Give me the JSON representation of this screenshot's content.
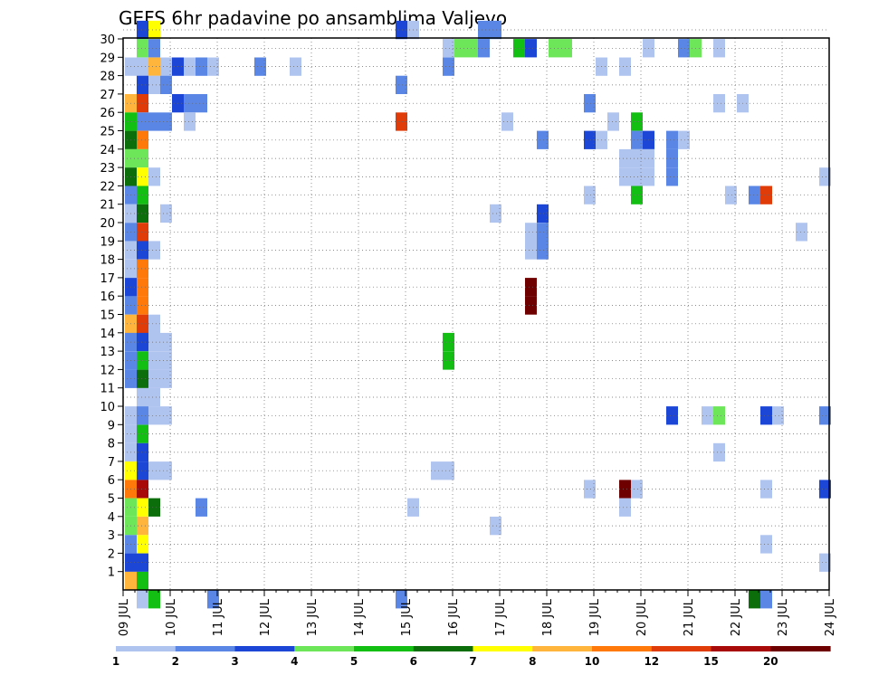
{
  "chart_data": {
    "type": "heatmap",
    "title": "GEFS 6hr padavine po ansamblima Valjevo",
    "xlabel": "",
    "ylabel": "",
    "x_ticks": [
      "09 JUL",
      "10 JUL",
      "11 JUL",
      "12 JUL",
      "13 JUL",
      "14 JUL",
      "15 JUL",
      "16 JUL",
      "17 JUL",
      "18 JUL",
      "19 JUL",
      "20 JUL",
      "21 JUL",
      "22 JUL",
      "23 JUL",
      "24 JUL"
    ],
    "y_ticks": [
      "1",
      "2",
      "3",
      "4",
      "5",
      "6",
      "7",
      "8",
      "9",
      "10",
      "11",
      "12",
      "13",
      "14",
      "15",
      "16",
      "17",
      "18",
      "19",
      "20",
      "21",
      "22",
      "23",
      "24",
      "25",
      "26",
      "27",
      "28",
      "29",
      "30"
    ],
    "x_range_days": [
      0,
      15
    ],
    "y_range_members": [
      0,
      30
    ],
    "time_step_hours": 6,
    "grid": true,
    "legend_placement": "bottom",
    "colorbar": {
      "colors": [
        "#b0c4f0",
        "#5a87e6",
        "#1b46d6",
        "#6ee65a",
        "#12bf12",
        "#0b6e0b",
        "#ffff00",
        "#ffb43c",
        "#ff780a",
        "#e03c0a",
        "#a80a0a",
        "#6e0000"
      ],
      "labels": [
        "1",
        "2",
        "3",
        "4",
        "5",
        "6",
        "7",
        "8",
        "10",
        "12",
        "15",
        "20"
      ]
    },
    "cells": [
      {
        "m": 30,
        "s": 1,
        "c": 2
      },
      {
        "m": 30,
        "s": 2,
        "c": 6
      },
      {
        "m": 30,
        "s": 23,
        "c": 2
      },
      {
        "m": 30,
        "s": 24,
        "c": 0
      },
      {
        "m": 30,
        "s": 30,
        "c": 1
      },
      {
        "m": 30,
        "s": 31,
        "c": 1
      },
      {
        "m": 29,
        "s": 1,
        "c": 3
      },
      {
        "m": 29,
        "s": 2,
        "c": 1
      },
      {
        "m": 29,
        "s": 27,
        "c": 0
      },
      {
        "m": 29,
        "s": 28,
        "c": 3
      },
      {
        "m": 29,
        "s": 29,
        "c": 3
      },
      {
        "m": 29,
        "s": 30,
        "c": 1
      },
      {
        "m": 29,
        "s": 33,
        "c": 4
      },
      {
        "m": 29,
        "s": 34,
        "c": 2
      },
      {
        "m": 29,
        "s": 36,
        "c": 3
      },
      {
        "m": 29,
        "s": 37,
        "c": 3
      },
      {
        "m": 29,
        "s": 44,
        "c": 0
      },
      {
        "m": 29,
        "s": 47,
        "c": 1
      },
      {
        "m": 29,
        "s": 48,
        "c": 3
      },
      {
        "m": 29,
        "s": 50,
        "c": 0
      },
      {
        "m": 28,
        "s": 0,
        "c": 0
      },
      {
        "m": 28,
        "s": 1,
        "c": 0
      },
      {
        "m": 28,
        "s": 2,
        "c": 7
      },
      {
        "m": 28,
        "s": 3,
        "c": 0
      },
      {
        "m": 28,
        "s": 4,
        "c": 2
      },
      {
        "m": 28,
        "s": 5,
        "c": 0
      },
      {
        "m": 28,
        "s": 6,
        "c": 1
      },
      {
        "m": 28,
        "s": 7,
        "c": 0
      },
      {
        "m": 28,
        "s": 11,
        "c": 1
      },
      {
        "m": 28,
        "s": 14,
        "c": 0
      },
      {
        "m": 28,
        "s": 27,
        "c": 1
      },
      {
        "m": 28,
        "s": 40,
        "c": 0
      },
      {
        "m": 28,
        "s": 42,
        "c": 0
      },
      {
        "m": 27,
        "s": 1,
        "c": 2
      },
      {
        "m": 27,
        "s": 2,
        "c": 0
      },
      {
        "m": 27,
        "s": 3,
        "c": 1
      },
      {
        "m": 27,
        "s": 23,
        "c": 1
      },
      {
        "m": 26,
        "s": 0,
        "c": 7
      },
      {
        "m": 26,
        "s": 1,
        "c": 9
      },
      {
        "m": 26,
        "s": 4,
        "c": 2
      },
      {
        "m": 26,
        "s": 5,
        "c": 1
      },
      {
        "m": 26,
        "s": 6,
        "c": 1
      },
      {
        "m": 26,
        "s": 39,
        "c": 1
      },
      {
        "m": 26,
        "s": 50,
        "c": 0
      },
      {
        "m": 26,
        "s": 52,
        "c": 0
      },
      {
        "m": 25,
        "s": 0,
        "c": 4
      },
      {
        "m": 25,
        "s": 1,
        "c": 1
      },
      {
        "m": 25,
        "s": 2,
        "c": 1
      },
      {
        "m": 25,
        "s": 3,
        "c": 1
      },
      {
        "m": 25,
        "s": 5,
        "c": 0
      },
      {
        "m": 25,
        "s": 23,
        "c": 9
      },
      {
        "m": 25,
        "s": 32,
        "c": 0
      },
      {
        "m": 25,
        "s": 41,
        "c": 0
      },
      {
        "m": 25,
        "s": 43,
        "c": 4
      },
      {
        "m": 24,
        "s": 0,
        "c": 5
      },
      {
        "m": 24,
        "s": 1,
        "c": 8
      },
      {
        "m": 24,
        "s": 35,
        "c": 1
      },
      {
        "m": 24,
        "s": 39,
        "c": 2
      },
      {
        "m": 24,
        "s": 40,
        "c": 0
      },
      {
        "m": 24,
        "s": 43,
        "c": 1
      },
      {
        "m": 24,
        "s": 44,
        "c": 2
      },
      {
        "m": 24,
        "s": 46,
        "c": 1
      },
      {
        "m": 24,
        "s": 47,
        "c": 0
      },
      {
        "m": 23,
        "s": 0,
        "c": 3
      },
      {
        "m": 23,
        "s": 1,
        "c": 3
      },
      {
        "m": 23,
        "s": 42,
        "c": 0
      },
      {
        "m": 23,
        "s": 43,
        "c": 0
      },
      {
        "m": 23,
        "s": 44,
        "c": 0
      },
      {
        "m": 23,
        "s": 46,
        "c": 1
      },
      {
        "m": 22,
        "s": 0,
        "c": 5
      },
      {
        "m": 22,
        "s": 1,
        "c": 6
      },
      {
        "m": 22,
        "s": 2,
        "c": 0
      },
      {
        "m": 22,
        "s": 42,
        "c": 0
      },
      {
        "m": 22,
        "s": 43,
        "c": 0
      },
      {
        "m": 22,
        "s": 44,
        "c": 0
      },
      {
        "m": 22,
        "s": 46,
        "c": 1
      },
      {
        "m": 22,
        "s": 59,
        "c": 0
      },
      {
        "m": 21,
        "s": 0,
        "c": 1
      },
      {
        "m": 21,
        "s": 1,
        "c": 4
      },
      {
        "m": 21,
        "s": 39,
        "c": 0
      },
      {
        "m": 21,
        "s": 43,
        "c": 4
      },
      {
        "m": 21,
        "s": 51,
        "c": 0
      },
      {
        "m": 21,
        "s": 53,
        "c": 1
      },
      {
        "m": 21,
        "s": 54,
        "c": 9
      },
      {
        "m": 20,
        "s": 0,
        "c": 0
      },
      {
        "m": 20,
        "s": 1,
        "c": 5
      },
      {
        "m": 20,
        "s": 3,
        "c": 0
      },
      {
        "m": 20,
        "s": 31,
        "c": 0
      },
      {
        "m": 20,
        "s": 35,
        "c": 2
      },
      {
        "m": 19,
        "s": 0,
        "c": 1
      },
      {
        "m": 19,
        "s": 1,
        "c": 9
      },
      {
        "m": 19,
        "s": 34,
        "c": 0
      },
      {
        "m": 19,
        "s": 35,
        "c": 1
      },
      {
        "m": 19,
        "s": 57,
        "c": 0
      },
      {
        "m": 18,
        "s": 0,
        "c": 0
      },
      {
        "m": 18,
        "s": 1,
        "c": 2
      },
      {
        "m": 18,
        "s": 2,
        "c": 0
      },
      {
        "m": 18,
        "s": 34,
        "c": 0
      },
      {
        "m": 18,
        "s": 35,
        "c": 1
      },
      {
        "m": 17,
        "s": 0,
        "c": 0
      },
      {
        "m": 17,
        "s": 1,
        "c": 8
      },
      {
        "m": 16,
        "s": 0,
        "c": 2
      },
      {
        "m": 16,
        "s": 1,
        "c": 8
      },
      {
        "m": 16,
        "s": 34,
        "c": 11
      },
      {
        "m": 15,
        "s": 0,
        "c": 1
      },
      {
        "m": 15,
        "s": 1,
        "c": 8
      },
      {
        "m": 15,
        "s": 34,
        "c": 11
      },
      {
        "m": 14,
        "s": 0,
        "c": 7
      },
      {
        "m": 14,
        "s": 1,
        "c": 9
      },
      {
        "m": 14,
        "s": 2,
        "c": 0
      },
      {
        "m": 13,
        "s": 0,
        "c": 1
      },
      {
        "m": 13,
        "s": 1,
        "c": 2
      },
      {
        "m": 13,
        "s": 2,
        "c": 0
      },
      {
        "m": 13,
        "s": 3,
        "c": 0
      },
      {
        "m": 13,
        "s": 27,
        "c": 4
      },
      {
        "m": 12,
        "s": 0,
        "c": 1
      },
      {
        "m": 12,
        "s": 1,
        "c": 4
      },
      {
        "m": 12,
        "s": 2,
        "c": 0
      },
      {
        "m": 12,
        "s": 3,
        "c": 0
      },
      {
        "m": 12,
        "s": 27,
        "c": 4
      },
      {
        "m": 11,
        "s": 0,
        "c": 1
      },
      {
        "m": 11,
        "s": 1,
        "c": 5
      },
      {
        "m": 11,
        "s": 2,
        "c": 0
      },
      {
        "m": 11,
        "s": 3,
        "c": 0
      },
      {
        "m": 10,
        "s": 1,
        "c": 0
      },
      {
        "m": 10,
        "s": 2,
        "c": 0
      },
      {
        "m": 9,
        "s": 0,
        "c": 0
      },
      {
        "m": 9,
        "s": 1,
        "c": 1
      },
      {
        "m": 9,
        "s": 2,
        "c": 0
      },
      {
        "m": 9,
        "s": 3,
        "c": 0
      },
      {
        "m": 9,
        "s": 46,
        "c": 2
      },
      {
        "m": 9,
        "s": 49,
        "c": 0
      },
      {
        "m": 9,
        "s": 50,
        "c": 3
      },
      {
        "m": 9,
        "s": 54,
        "c": 2
      },
      {
        "m": 9,
        "s": 55,
        "c": 0
      },
      {
        "m": 9,
        "s": 59,
        "c": 1
      },
      {
        "m": 8,
        "s": 0,
        "c": 0
      },
      {
        "m": 8,
        "s": 1,
        "c": 4
      },
      {
        "m": 7,
        "s": 0,
        "c": 0
      },
      {
        "m": 7,
        "s": 1,
        "c": 2
      },
      {
        "m": 7,
        "s": 50,
        "c": 0
      },
      {
        "m": 6,
        "s": 0,
        "c": 6
      },
      {
        "m": 6,
        "s": 1,
        "c": 2
      },
      {
        "m": 6,
        "s": 2,
        "c": 0
      },
      {
        "m": 6,
        "s": 3,
        "c": 0
      },
      {
        "m": 6,
        "s": 26,
        "c": 0
      },
      {
        "m": 6,
        "s": 27,
        "c": 0
      },
      {
        "m": 5,
        "s": 0,
        "c": 8
      },
      {
        "m": 5,
        "s": 1,
        "c": 10
      },
      {
        "m": 5,
        "s": 39,
        "c": 0
      },
      {
        "m": 5,
        "s": 42,
        "c": 11
      },
      {
        "m": 5,
        "s": 43,
        "c": 0
      },
      {
        "m": 5,
        "s": 54,
        "c": 0
      },
      {
        "m": 5,
        "s": 59,
        "c": 2
      },
      {
        "m": 4,
        "s": 0,
        "c": 3
      },
      {
        "m": 4,
        "s": 1,
        "c": 6
      },
      {
        "m": 4,
        "s": 2,
        "c": 5
      },
      {
        "m": 4,
        "s": 6,
        "c": 1
      },
      {
        "m": 4,
        "s": 24,
        "c": 0
      },
      {
        "m": 4,
        "s": 42,
        "c": 0
      },
      {
        "m": 3,
        "s": 0,
        "c": 3
      },
      {
        "m": 3,
        "s": 1,
        "c": 7
      },
      {
        "m": 3,
        "s": 31,
        "c": 0
      },
      {
        "m": 2,
        "s": 0,
        "c": 1
      },
      {
        "m": 2,
        "s": 1,
        "c": 6
      },
      {
        "m": 2,
        "s": 54,
        "c": 0
      },
      {
        "m": 1,
        "s": 0,
        "c": 2
      },
      {
        "m": 1,
        "s": 1,
        "c": 2
      },
      {
        "m": 1,
        "s": 59,
        "c": 0
      },
      {
        "m": 0,
        "s": 0,
        "c": 7
      },
      {
        "m": 0,
        "s": 1,
        "c": 4
      },
      {
        "m": -1,
        "s": 1,
        "c": 0
      },
      {
        "m": -1,
        "s": 2,
        "c": 4
      },
      {
        "m": -1,
        "s": 7,
        "c": 1
      },
      {
        "m": -1,
        "s": 23,
        "c": 1
      },
      {
        "m": -1,
        "s": 53,
        "c": 5
      },
      {
        "m": -1,
        "s": 54,
        "c": 1
      }
    ]
  }
}
